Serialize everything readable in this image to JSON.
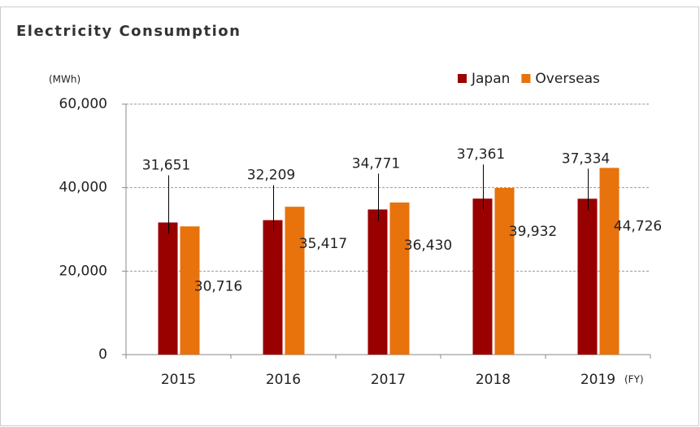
{
  "chart_data": {
    "type": "bar",
    "title": "Electricity Consumption",
    "y_unit": "(MWh)",
    "x_unit": "(FY)",
    "categories": [
      "2015",
      "2016",
      "2017",
      "2018",
      "2019"
    ],
    "series": [
      {
        "name": "Japan",
        "color": "#990000",
        "values": [
          31651,
          32209,
          34771,
          37361,
          37334
        ],
        "value_labels": [
          "31,651",
          "32,209",
          "34,771",
          "37,361",
          "37,334"
        ]
      },
      {
        "name": "Overseas",
        "color": "#e8720c",
        "values": [
          30716,
          35417,
          36430,
          39932,
          44726
        ],
        "value_labels": [
          "30,716",
          "35,417",
          "36,430",
          "39,932",
          "44,726"
        ]
      }
    ],
    "ylim": [
      0,
      60000
    ],
    "yticks": [
      0,
      {
        "value": 20000,
        "label": "20,000"
      },
      {
        "value": 40000,
        "label": "40,000"
      },
      {
        "value": 60000,
        "label": "60,000"
      }
    ],
    "grid": true,
    "legend": "top-right"
  }
}
